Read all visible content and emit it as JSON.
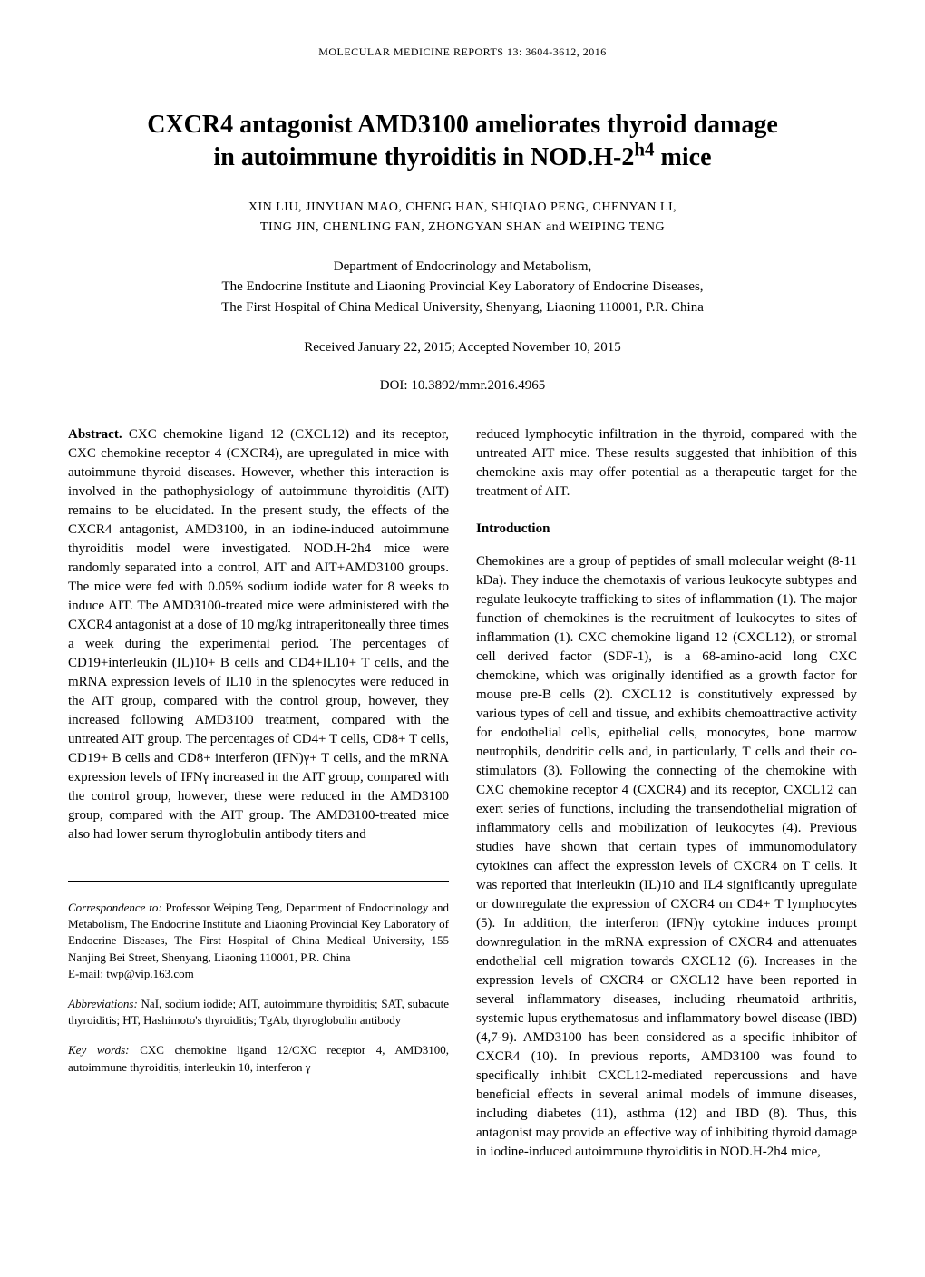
{
  "running_header": "MOLECULAR MEDICINE REPORTS  13:  3604-3612,  2016",
  "title_line1": "CXCR4 antagonist AMD3100 ameliorates thyroid damage",
  "title_line2_prefix": "in autoimmune thyroiditis in NOD.H-2",
  "title_line2_sup": "h4",
  "title_line2_suffix": " mice",
  "authors_line1": "XIN LIU,  JINYUAN MAO,  CHENG HAN,  SHIQIAO PENG,  CHENYAN LI,",
  "authors_line2": "TING JIN,  CHENLING FAN,  ZHONGYAN SHAN  and  WEIPING TENG",
  "affiliation_line1": "Department of Endocrinology and Metabolism,",
  "affiliation_line2": "The Endocrine Institute and Liaoning Provincial Key Laboratory of Endocrine Diseases,",
  "affiliation_line3": "The First Hospital of China Medical University, Shenyang, Liaoning 110001, P.R. China",
  "dates": "Received January 22, 2015;  Accepted November 10, 2015",
  "doi": "DOI: 10.3892/mmr.2016.4965",
  "abstract_label": "Abstract.",
  "abstract_body": "CXC chemokine ligand 12 (CXCL12) and its receptor, CXC chemokine receptor 4 (CXCR4), are upregulated in mice with autoimmune thyroid diseases. However, whether this interaction is involved in the pathophysiology of autoimmune thyroiditis (AIT) remains to be elucidated. In the present study, the effects of the CXCR4 antagonist, AMD3100, in an iodine-induced autoimmune thyroiditis model were investigated. NOD.H-2h4 mice were randomly separated into a control, AIT and AIT+AMD3100 groups. The mice were fed with 0.05% sodium iodide water for 8 weeks to induce AIT. The AMD3100-treated mice were administered with the CXCR4 antagonist at a dose of 10 mg/kg intraperitoneally three times a week during the experimental period. The percentages of CD19+interleukin (IL)10+ B cells and CD4+IL10+ T cells, and the mRNA expression levels of IL10 in the splenocytes were reduced in the AIT group, compared with the control group, however, they increased following AMD3100 treatment, compared with the untreated AIT group. The percentages of CD4+ T cells, CD8+ T cells, CD19+ B cells and CD8+ interferon (IFN)γ+ T cells, and the mRNA expression levels of IFNγ increased in the AIT group, compared with the control group, however, these were reduced in the AMD3100 group, compared with the AIT group. The AMD3100-treated mice also had lower serum thyroglobulin antibody titers and",
  "correspondence_label": "Correspondence to:",
  "correspondence_body": "Professor Weiping Teng, Department of Endocrinology and Metabolism, The Endocrine Institute and Liaoning Provincial Key Laboratory of Endocrine Diseases, The First Hospital of China Medical University, 155 Nanjing Bei Street, Shenyang, Liaoning 110001, P.R. China",
  "correspondence_email": "E-mail: twp@vip.163.com",
  "abbreviations_label": "Abbreviations:",
  "abbreviations_body": "NaI, sodium iodide; AIT, autoimmune thyroiditis; SAT, subacute thyroiditis; HT, Hashimoto's thyroiditis; TgAb, thyroglobulin antibody",
  "keywords_label": "Key words:",
  "keywords_body": "CXC chemokine ligand 12/CXC receptor 4, AMD3100, autoimmune thyroiditis, interleukin 10, interferon γ",
  "col2_continuation": "reduced lymphocytic infiltration in the thyroid, compared with the untreated AIT mice. These results suggested that inhibition of this chemokine axis may offer potential as a therapeutic target for the treatment of AIT.",
  "introduction_heading": "Introduction",
  "introduction_body": "Chemokines are a group of peptides of small molecular weight (8-11 kDa). They induce the chemotaxis of various leukocyte subtypes and regulate leukocyte trafficking to sites of inflammation (1). The major function of chemokines is the recruitment of leukocytes to sites of inflammation (1). CXC chemokine ligand 12 (CXCL12), or stromal cell derived factor (SDF-1), is a 68-amino-acid long CXC chemokine, which was originally identified as a growth factor for mouse pre-B cells (2). CXCL12 is constitutively expressed by various types of cell and tissue, and exhibits chemoattractive activity for endothelial cells, epithelial cells, monocytes, bone marrow neutrophils, dendritic cells and, in particularly, T cells and their co-stimulators (3). Following the connecting of the chemokine with CXC chemokine receptor 4 (CXCR4) and its receptor, CXCL12 can exert series of functions, including the transendothelial migration of inflammatory cells and mobilization of leukocytes (4). Previous studies have shown that certain types of immunomodulatory cytokines can affect the expression levels of CXCR4 on T cells. It was reported that interleukin (IL)10 and IL4 significantly upregulate or downregulate the expression of CXCR4 on CD4+ T lymphocytes (5). In addition, the interferon (IFN)γ cytokine induces prompt downregulation in the mRNA expression of CXCR4 and attenuates endothelial cell migration towards CXCL12 (6). Increases in the expression levels of CXCR4 or CXCL12 have been reported in several inflammatory diseases, including rheumatoid arthritis, systemic lupus erythematosus and inflammatory bowel disease (IBD) (4,7-9). AMD3100 has been considered as a specific inhibitor of CXCR4 (10). In previous reports, AMD3100 was found to specifically inhibit CXCL12-mediated repercussions and have beneficial effects in several animal models of immune diseases, including diabetes (11), asthma (12) and IBD (8). Thus, this antagonist may provide an effective way of inhibiting thyroid damage in iodine-induced autoimmune thyroiditis in NOD.H-2h4 mice,"
}
